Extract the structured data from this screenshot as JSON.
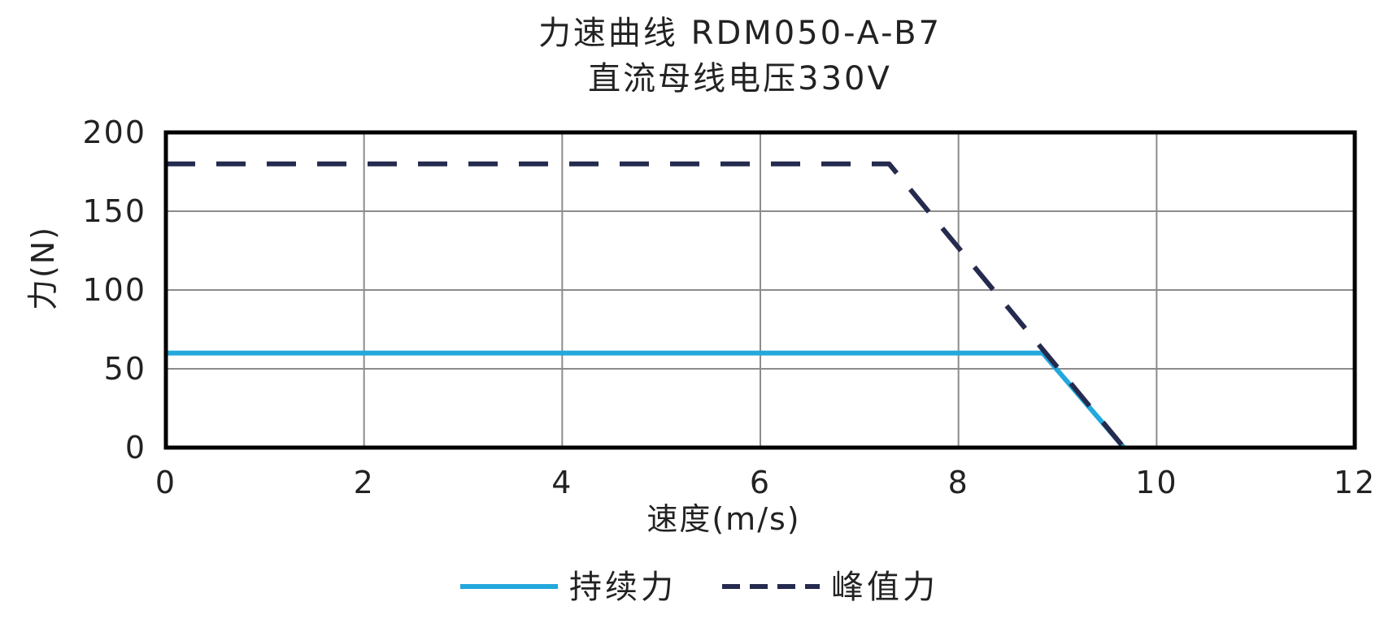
{
  "chart_data": {
    "type": "line",
    "title": "力速曲线 RDM050-A-B7",
    "subtitle": "直流母线电压330V",
    "xlabel": "速度(m/s)",
    "ylabel": "力(N)",
    "xlim": [
      0,
      12
    ],
    "ylim": [
      0,
      200
    ],
    "xticks": [
      0,
      2,
      4,
      6,
      8,
      10,
      12
    ],
    "yticks": [
      0,
      50,
      100,
      150,
      200
    ],
    "grid": true,
    "legend_position": "bottom-center",
    "series": [
      {
        "name": "持续力",
        "style": "solid",
        "color": "#23a8dc",
        "points": [
          [
            0,
            60
          ],
          [
            8.85,
            60
          ],
          [
            9.67,
            0
          ]
        ]
      },
      {
        "name": "峰值力",
        "style": "dashed",
        "color": "#252b4e",
        "points": [
          [
            0,
            180
          ],
          [
            7.3,
            180
          ],
          [
            9.67,
            0
          ]
        ]
      }
    ]
  }
}
